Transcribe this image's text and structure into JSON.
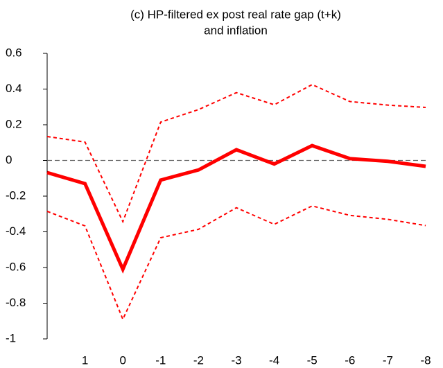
{
  "chart_data": {
    "type": "line",
    "title": [
      "(c) HP-filtered ex post real rate gap (t+k)",
      "and inflation"
    ],
    "categories": [
      null,
      "1",
      "0",
      "-1",
      "-2",
      "-3",
      "-4",
      "-5",
      "-6",
      "-7",
      "-8"
    ],
    "series": [
      {
        "color": "#ff0000",
        "style": "solid",
        "values": [
          -0.068,
          -0.13,
          -0.61,
          -0.11,
          -0.053,
          0.06,
          -0.02,
          0.083,
          0.01,
          -0.005,
          -0.033
        ]
      },
      {
        "color": "#ff0000",
        "style": "dotted",
        "values": [
          0.134,
          0.103,
          -0.343,
          0.215,
          0.285,
          0.38,
          0.312,
          0.425,
          0.33,
          0.31,
          0.297
        ]
      },
      {
        "color": "#ff0000",
        "style": "dotted",
        "values": [
          -0.285,
          -0.367,
          -0.89,
          -0.433,
          -0.386,
          -0.265,
          -0.358,
          -0.255,
          -0.308,
          -0.33,
          -0.365
        ]
      }
    ],
    "ylim": [
      -1,
      0.6
    ],
    "yticks": [
      0.6,
      0.4,
      0.2,
      0,
      -0.2,
      -0.4,
      -0.6,
      -0.8,
      -1
    ],
    "zero_line": true
  }
}
